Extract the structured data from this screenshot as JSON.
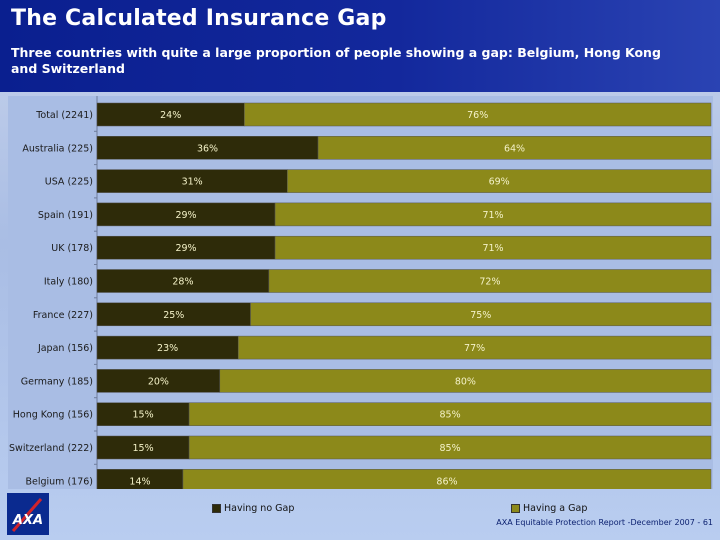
{
  "header": {
    "title": "The Calculated Insurance Gap",
    "subtitle": "Three countries with quite a large proportion of people showing a gap: Belgium, Hong Kong and Switzerland"
  },
  "legend": {
    "no_gap_label": "Having no Gap",
    "gap_label": "Having a Gap"
  },
  "footer": {
    "text": "AXA Equitable Protection Report -December  2007 - 61"
  },
  "logo": {
    "text": "AXA"
  },
  "colors": {
    "no_gap": "#2e2b09",
    "gap": "#8c891a",
    "label": "#f4f2c8"
  },
  "chart_data": {
    "type": "bar",
    "orientation": "horizontal",
    "stacked": true,
    "percent": true,
    "categories": [
      "Total (2241)",
      "Australia (225)",
      "USA (225)",
      "Spain (191)",
      "UK (178)",
      "Italy (180)",
      "France (227)",
      "Japan (156)",
      "Germany (185)",
      "Hong Kong (156)",
      "Switzerland (222)",
      "Belgium (176)"
    ],
    "series": [
      {
        "name": "Having no Gap",
        "values": [
          24,
          36,
          31,
          29,
          29,
          28,
          25,
          23,
          20,
          15,
          15,
          14
        ],
        "labels": [
          "24%",
          "36%",
          "31%",
          "29%",
          "29%",
          "28%",
          "25%",
          "23%",
          "20%",
          "15%",
          "15%",
          "14%"
        ]
      },
      {
        "name": "Having a Gap",
        "values": [
          76,
          64,
          69,
          71,
          71,
          72,
          75,
          77,
          80,
          85,
          85,
          86
        ],
        "labels": [
          "76%",
          "64%",
          "69%",
          "71%",
          "71%",
          "72%",
          "75%",
          "77%",
          "80%",
          "85%",
          "85%",
          "86%"
        ]
      }
    ],
    "xlim": [
      0,
      100
    ],
    "legend_position": "bottom"
  }
}
